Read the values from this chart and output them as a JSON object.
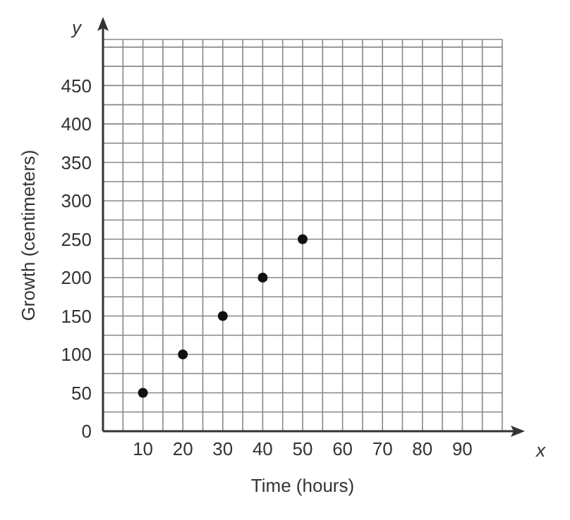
{
  "chart_data": {
    "type": "scatter",
    "xlabel": "Time (hours)",
    "ylabel": "Growth (centimeters)",
    "annotations": [
      "x",
      "y"
    ],
    "x": [
      10,
      20,
      30,
      40,
      50
    ],
    "series": [
      {
        "color": "#111111",
        "values": [
          50,
          100,
          150,
          200,
          250
        ]
      }
    ],
    "xlim": [
      0,
      100
    ],
    "xticks": [
      {
        "value": 0,
        "label": null
      },
      {
        "value": 5,
        "label": null
      },
      10,
      {
        "value": 15,
        "label": null
      },
      20,
      {
        "value": 25,
        "label": null
      },
      30,
      {
        "value": 35,
        "label": null
      },
      40,
      {
        "value": 45,
        "label": null
      },
      50,
      {
        "value": 55,
        "label": null
      },
      60,
      {
        "value": 65,
        "label": null
      },
      70,
      {
        "value": 75,
        "label": null
      },
      80,
      {
        "value": 85,
        "label": null
      },
      90,
      {
        "value": 95,
        "label": null
      }
    ],
    "ylim": [
      0,
      510
    ],
    "yticks": [
      0,
      {
        "value": 25,
        "label": null
      },
      50,
      {
        "value": 75,
        "label": null
      },
      100,
      {
        "value": 125,
        "label": null
      },
      150,
      {
        "value": 175,
        "label": null
      },
      200,
      {
        "value": 225,
        "label": null
      },
      250,
      {
        "value": 275,
        "label": null
      },
      300,
      {
        "value": 325,
        "label": null
      },
      350,
      {
        "value": 375,
        "label": null
      },
      400,
      {
        "value": 425,
        "label": null
      },
      450,
      {
        "value": 475,
        "label": null
      },
      {
        "value": 500,
        "label": null
      }
    ],
    "grid": true,
    "marker": "circle"
  }
}
